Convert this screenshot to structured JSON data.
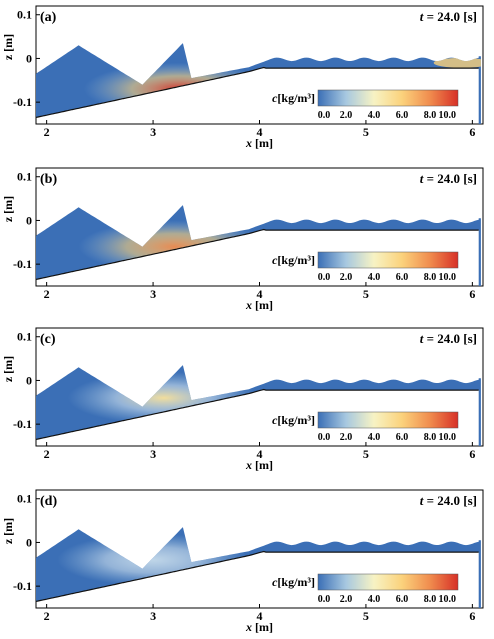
{
  "chart_data": [
    {
      "type": "heatmap",
      "panel_label": "(a)",
      "time_label": "t = 24.0 [s]",
      "xlabel": "x [m]",
      "ylabel": "z [m]",
      "xlim": [
        1.9,
        6.1
      ],
      "ylim": [
        -0.15,
        0.12
      ],
      "xticks": [
        2,
        3,
        4,
        5,
        6
      ],
      "yticks": [
        0.1,
        0,
        -0.1
      ],
      "colorbar": {
        "label": "c[kg/m³]",
        "range": [
          0,
          10
        ],
        "ticks": [
          "0.0",
          "2.0",
          "4.0",
          "6.0",
          "8.0",
          "10.0"
        ],
        "colors": [
          "#3b6fb6",
          "#a7c8e0",
          "#f7f3c4",
          "#fbd27c",
          "#f08c4e",
          "#d73027"
        ]
      },
      "peak_concentration_region": {
        "x": 3.25,
        "z": -0.07,
        "c_max": 9.5
      },
      "secondary_region": {
        "x": 5.9,
        "z": -0.01,
        "c": 4.0
      }
    },
    {
      "type": "heatmap",
      "panel_label": "(b)",
      "time_label": "t = 24.0 [s]",
      "xlabel": "x [m]",
      "ylabel": "z [m]",
      "xlim": [
        1.9,
        6.1
      ],
      "ylim": [
        -0.15,
        0.12
      ],
      "xticks": [
        2,
        3,
        4,
        5,
        6
      ],
      "yticks": [
        0.1,
        0,
        -0.1
      ],
      "colorbar": {
        "label": "c[kg/m³]",
        "range": [
          0,
          10
        ],
        "ticks": [
          "0.0",
          "2.0",
          "4.0",
          "6.0",
          "8.0",
          "10.0"
        ],
        "colors": [
          "#3b6fb6",
          "#a7c8e0",
          "#f7f3c4",
          "#fbd27c",
          "#f08c4e",
          "#d73027"
        ]
      },
      "peak_concentration_region": {
        "x": 3.2,
        "z": -0.06,
        "c_max": 6.0
      }
    },
    {
      "type": "heatmap",
      "panel_label": "(c)",
      "time_label": "t = 24.0 [s]",
      "xlabel": "x [m]",
      "ylabel": "z [m]",
      "xlim": [
        1.9,
        6.1
      ],
      "ylim": [
        -0.15,
        0.12
      ],
      "xticks": [
        2,
        3,
        4,
        5,
        6
      ],
      "yticks": [
        0.1,
        0,
        -0.1
      ],
      "colorbar": {
        "label": "c[kg/m³]",
        "range": [
          0,
          10
        ],
        "ticks": [
          "0.0",
          "2.0",
          "4.0",
          "6.0",
          "8.0",
          "10.0"
        ],
        "colors": [
          "#3b6fb6",
          "#a7c8e0",
          "#f7f3c4",
          "#fbd27c",
          "#f08c4e",
          "#d73027"
        ]
      },
      "peak_concentration_region": {
        "x": 3.1,
        "z": -0.04,
        "c_max": 2.0
      }
    },
    {
      "type": "heatmap",
      "panel_label": "(d)",
      "time_label": "t = 24.0 [s]",
      "xlabel": "x [m]",
      "ylabel": "z [m]",
      "xlim": [
        1.9,
        6.1
      ],
      "ylim": [
        -0.15,
        0.12
      ],
      "xticks": [
        2,
        3,
        4,
        5,
        6
      ],
      "yticks": [
        0.1,
        0,
        -0.1
      ],
      "colorbar": {
        "label": "c[kg/m³]",
        "range": [
          0,
          10
        ],
        "ticks": [
          "0.0",
          "2.0",
          "4.0",
          "6.0",
          "8.0",
          "10.0"
        ],
        "colors": [
          "#3b6fb6",
          "#a7c8e0",
          "#f7f3c4",
          "#fbd27c",
          "#f08c4e",
          "#d73027"
        ]
      },
      "peak_concentration_region": {
        "x": 3.0,
        "z": -0.04,
        "c_max": 1.0
      }
    }
  ]
}
